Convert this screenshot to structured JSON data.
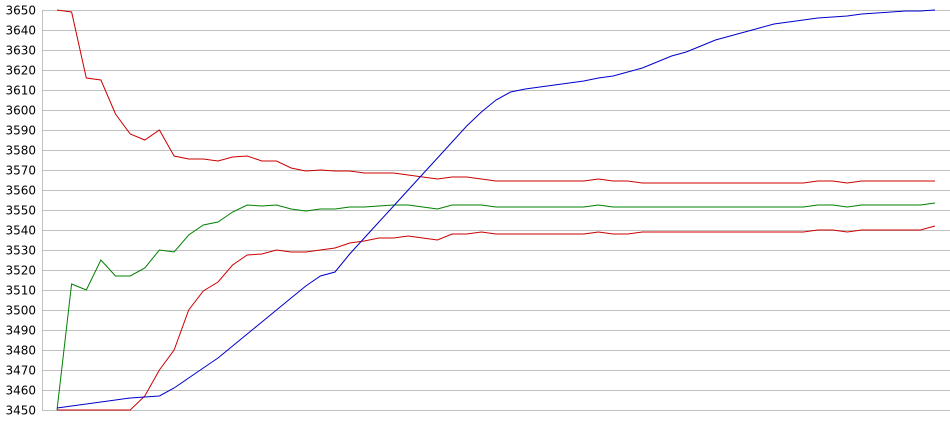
{
  "chart_data": {
    "type": "line",
    "title": "",
    "xlabel": "",
    "ylabel": "",
    "ylim": [
      3450,
      3650
    ],
    "yticks": [
      3450,
      3460,
      3470,
      3480,
      3490,
      3500,
      3510,
      3520,
      3530,
      3540,
      3550,
      3560,
      3570,
      3580,
      3590,
      3600,
      3610,
      3620,
      3630,
      3640,
      3650
    ],
    "ytick_labels": [
      "3450",
      "3460",
      "3470",
      "3480",
      "3490",
      "3500",
      "3510",
      "3520",
      "3530",
      "3540",
      "3550",
      "3560",
      "3570",
      "3580",
      "3590",
      "3600",
      "3610",
      "3620",
      "3630",
      "3640",
      "3650"
    ],
    "grid": true,
    "legend": "none",
    "x_count": 61,
    "series": [
      {
        "name": "red-upper",
        "color": "#cc0000",
        "values": [
          3650,
          3649,
          3616,
          3615,
          3598,
          3588,
          3585,
          3590,
          3577,
          3575.5,
          3575.5,
          3574.5,
          3576.5,
          3577,
          3574.5,
          3574.5,
          3571,
          3569.5,
          3570,
          3569.5,
          3569.5,
          3568.5,
          3568.5,
          3568.5,
          3567.5,
          3566.5,
          3565.5,
          3566.5,
          3566.5,
          3565.5,
          3564.5,
          3564.5,
          3564.5,
          3564.5,
          3564.5,
          3564.5,
          3564.5,
          3565.5,
          3564.5,
          3564.5,
          3563.5,
          3563.5,
          3563.5,
          3563.5,
          3563.5,
          3563.5,
          3563.5,
          3563.5,
          3563.5,
          3563.5,
          3563.5,
          3563.5,
          3564.5,
          3564.5,
          3563.5,
          3564.5,
          3564.5,
          3564.5,
          3564.5,
          3564.5,
          3564.5
        ]
      },
      {
        "name": "green",
        "color": "#008000",
        "values": [
          3450,
          3513,
          3510,
          3525,
          3517,
          3517,
          3521,
          3530,
          3529,
          3537.5,
          3542.5,
          3544,
          3549,
          3552.5,
          3552,
          3552.5,
          3550.5,
          3549.5,
          3550.5,
          3550.5,
          3551.5,
          3551.5,
          3552,
          3552.5,
          3552.5,
          3551.5,
          3550.5,
          3552.5,
          3552.5,
          3552.5,
          3551.5,
          3551.5,
          3551.5,
          3551.5,
          3551.5,
          3551.5,
          3551.5,
          3552.5,
          3551.5,
          3551.5,
          3551.5,
          3551.5,
          3551.5,
          3551.5,
          3551.5,
          3551.5,
          3551.5,
          3551.5,
          3551.5,
          3551.5,
          3551.5,
          3551.5,
          3552.5,
          3552.5,
          3551.5,
          3552.5,
          3552.5,
          3552.5,
          3552.5,
          3552.5,
          3553.5
        ]
      },
      {
        "name": "red-lower",
        "color": "#cc0000",
        "values": [
          3450,
          3450,
          3450,
          3450,
          3450,
          3450,
          3457,
          3470,
          3480,
          3500,
          3509.5,
          3514,
          3522.5,
          3527.5,
          3528,
          3530,
          3529,
          3529,
          3530,
          3531,
          3533.5,
          3534.5,
          3536,
          3536,
          3537,
          3536,
          3535,
          3538,
          3538,
          3539,
          3538,
          3538,
          3538,
          3538,
          3538,
          3538,
          3538,
          3539,
          3538,
          3538,
          3539,
          3539,
          3539,
          3539,
          3539,
          3539,
          3539,
          3539,
          3539,
          3539,
          3539,
          3539,
          3540,
          3540,
          3539,
          3540,
          3540,
          3540,
          3540,
          3540,
          3542
        ]
      },
      {
        "name": "blue",
        "color": "#0000cc",
        "values": [
          3451,
          3452,
          3453,
          3454,
          3455,
          3456,
          3456.5,
          3457,
          3461,
          3466,
          3471,
          3476,
          3482,
          3488,
          3494,
          3500,
          3506,
          3512,
          3517,
          3519,
          3528,
          3536,
          3544,
          3552,
          3560,
          3568,
          3576,
          3584,
          3592,
          3599,
          3605,
          3609,
          3610.5,
          3611.5,
          3612.5,
          3613.5,
          3614.5,
          3616,
          3617,
          3619,
          3621,
          3624,
          3627,
          3629,
          3632,
          3635,
          3637,
          3639,
          3641,
          3643,
          3644,
          3645,
          3646,
          3646.5,
          3647,
          3648,
          3648.5,
          3649,
          3649.5,
          3649.5,
          3650
        ]
      }
    ]
  }
}
